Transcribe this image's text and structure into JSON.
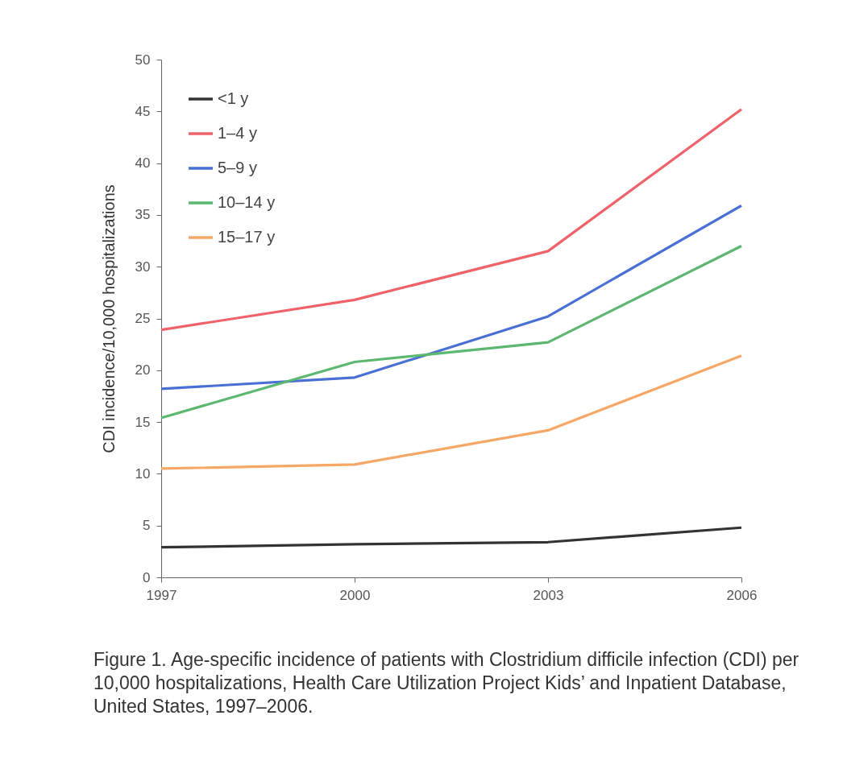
{
  "chart_data": {
    "type": "line",
    "ylabel": "CDI incidence/10,000 hospitalizations",
    "x": [
      1997,
      2000,
      2003,
      2006
    ],
    "xlim": [
      1997,
      2006
    ],
    "xticks": [
      1997,
      2000,
      2003,
      2006
    ],
    "ylim": [
      0,
      50
    ],
    "yticks": [
      0,
      5,
      10,
      15,
      20,
      25,
      30,
      35,
      40,
      45,
      50
    ],
    "series": [
      {
        "name": "<1 y",
        "color": "#333333",
        "values": [
          2.9,
          3.2,
          3.4,
          4.8
        ]
      },
      {
        "name": "1–4 y",
        "color": "#f0626a",
        "values": [
          23.9,
          26.8,
          31.5,
          45.2
        ]
      },
      {
        "name": "5–9 y",
        "color": "#4a6fd4",
        "values": [
          18.2,
          19.3,
          25.2,
          35.9
        ]
      },
      {
        "name": "10–14 y",
        "color": "#5cb870",
        "values": [
          15.4,
          20.8,
          22.7,
          32.0
        ]
      },
      {
        "name": "15–17 y",
        "color": "#f7a765",
        "values": [
          10.5,
          10.9,
          14.2,
          21.4
        ]
      }
    ],
    "legend": "top left",
    "grid": false,
    "marker": "none",
    "line_style": "solid",
    "annotations": [
      "Figure 1. Age-specific incidence of patients with Clostridium difficile infection (CDI) per 10,000 hospitalizations, Health Care Utilization Project Kids’ and Inpatient Database, United States, 1997–2006."
    ]
  }
}
